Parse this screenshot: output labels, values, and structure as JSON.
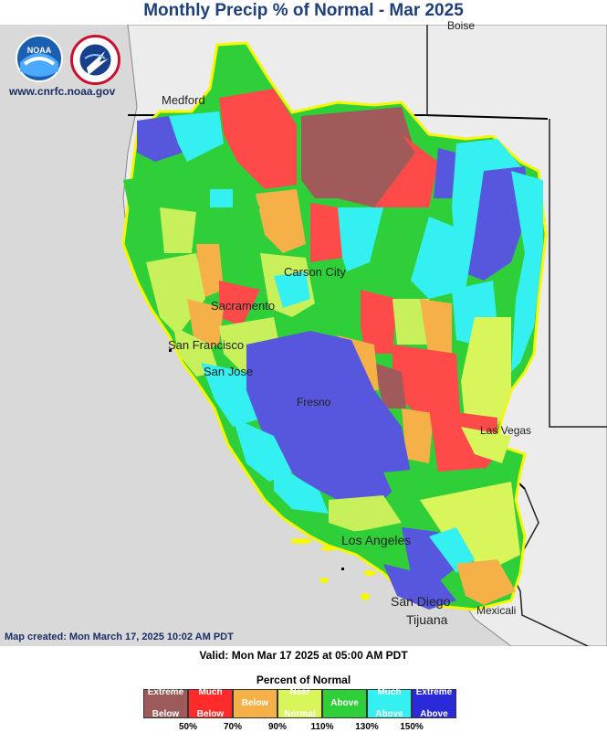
{
  "title": "Monthly Precip % of Normal - Mar 2025",
  "logos": {
    "noaa_text": "NOAA",
    "nws_text": "NATIONAL WEATHER SERVICE"
  },
  "website": "www.cnrfc.noaa.gov",
  "cities": {
    "boise": "Boise",
    "medford": "Medford",
    "carson_city": "Carson City",
    "sacramento": "Sacramento",
    "san_francisco": "San Francisco",
    "san_jose": "San Jose",
    "fresno": "Fresno",
    "las_vegas": "Las Vegas",
    "los_angeles": "Los Angeles",
    "san_diego": "San Diego",
    "tijuana": "Tijuana",
    "mexicali": "Mexicali"
  },
  "map_created": "Map created: Mon March 17, 2025 10:02 AM PDT",
  "valid": "Valid: Mon Mar 17 2025 at 05:00 AM PDT",
  "legend": {
    "title": "Percent of Normal",
    "categories": [
      {
        "label1": "Extreme",
        "label2": "Below",
        "color": "#9c5a5a",
        "text_color": "#ffffff"
      },
      {
        "label1": "Much",
        "label2": "Below",
        "color": "#ff2a2a",
        "text_color": "#ffffff"
      },
      {
        "label1": "Below",
        "label2": "",
        "color": "#f5b048",
        "text_color": "#ffffff"
      },
      {
        "label1": "Near",
        "label2": "Normal",
        "color": "#d8f55a",
        "text_color": "#ffffff"
      },
      {
        "label1": "Above",
        "label2": "",
        "color": "#2fcf3a",
        "text_color": "#ffffff"
      },
      {
        "label1": "Much",
        "label2": "Above",
        "color": "#35f0f0",
        "text_color": "#ffffff"
      },
      {
        "label1": "Extreme",
        "label2": "Above",
        "color": "#2a2ad8",
        "text_color": "#ffffff"
      }
    ],
    "ticks": [
      "50%",
      "70%",
      "90%",
      "110%",
      "130%",
      "150%"
    ]
  }
}
